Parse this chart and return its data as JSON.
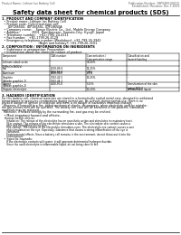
{
  "bg_color": "#ffffff",
  "header_left": "Product Name: Lithium Ion Battery Cell",
  "header_right_line1": "Publication Number: 98P0489-00610",
  "header_right_line2": "Established / Revision: Dec.7.2009",
  "title": "Safety data sheet for chemical products (SDS)",
  "section1_title": "1. PRODUCT AND COMPANY IDENTIFICATION",
  "section1_lines": [
    "  • Product name: Lithium Ion Battery Cell",
    "  • Product code: Cylindrical-type cell",
    "      IDF18650U, IDF18650L, IDF18650A",
    "  • Company name:    Sanyo Electric Co., Ltd., Mobile Energy Company",
    "  • Address:            2001  Kamikorosen, Sumoto-City, Hyogo, Japan",
    "  • Telephone number:   +81-(799)-24-4111",
    "  • Fax number:   +81-1799-26-4129",
    "  • Emergency telephone number (Weekdays): +81-799-26-3942",
    "                                    (Night and holiday): +81-799-26-3101"
  ],
  "section2_title": "2. COMPOSITION / INFORMATION ON INGREDIENTS",
  "section2_intro": "  • Substance or preparation: Preparation",
  "section2_sub": "  • Information about the chemical nature of product:",
  "table_headers": [
    "Component",
    "CAS number",
    "Concentration /\nConcentration range",
    "Classification and\nhazard labeling"
  ],
  "section3_title": "3. HAZARDS IDENTIFICATION",
  "section3_text_lines": [
    "For this battery cell, chemical materials are stored in a hermetically sealed metal case, designed to withstand",
    "temperatures or pressures-combinations during normal use. As a result, during normal use, there is no",
    "physical danger of ignition or explosion and there is no danger of hazardous materials leakage.",
    "  However, if exposed to a fire, added mechanical shocks, decompress, when electrolyte used by mistake,",
    "the gas release vent will be operated. The battery cell case will be breached of fire-patterns, hazardous",
    "materials may be released.",
    "  Moreover, if heated strongly by the surrounding fire, soot gas may be emitted."
  ],
  "section3_sub1": "  • Most important hazard and effects:",
  "section3_human": "Human health effects:",
  "section3_human_lines": [
    "      Inhalation: The release of the electrolyte has an anesthetic action and stimulates in respiratory tract.",
    "      Skin contact: The release of the electrolyte stimulates a skin. The electrolyte skin contact causes a",
    "      sore and stimulation on the skin.",
    "      Eye contact: The release of the electrolyte stimulates eyes. The electrolyte eye contact causes a sore",
    "      and stimulation on the eye. Especially, substance that causes a strong inflammation of the eye is",
    "      contained.",
    "      Environmental effects: Since a battery cell remains in the environment, do not throw out it into the",
    "      environment."
  ],
  "section3_specific": "  • Specific hazards:",
  "section3_specific_lines": [
    "      If the electrolyte contacts with water, it will generate detrimental hydrogen fluoride.",
    "      Since the used electrolyte is inflammable liquid, do not bring close to fire."
  ]
}
